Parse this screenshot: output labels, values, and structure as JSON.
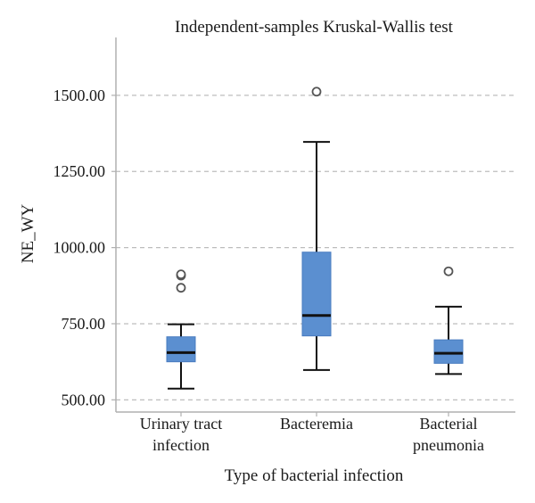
{
  "chart_data": {
    "type": "boxplot",
    "title": "Independent-samples Kruskal-Wallis test",
    "xlabel": "Type of bacterial infection",
    "ylabel": "NE_WY",
    "ylim": [
      460,
      1690
    ],
    "yticks": [
      500,
      750,
      1000,
      1250,
      1500
    ],
    "ytick_labels": [
      "500.00",
      "750.00",
      "1000.00",
      "1250.00",
      "1500.00"
    ],
    "grid": true,
    "box_color": "#5b8fd0",
    "categories": [
      {
        "label_lines": [
          "Urinary tract",
          "infection"
        ],
        "whisker_low": 537,
        "q1": 625,
        "median": 655,
        "q3": 707,
        "whisker_high": 748,
        "outliers": [
          868,
          908,
          912
        ]
      },
      {
        "label_lines": [
          "Bacteremia"
        ],
        "whisker_low": 598,
        "q1": 710,
        "median": 777,
        "q3": 985,
        "whisker_high": 1347,
        "outliers": [
          1512
        ]
      },
      {
        "label_lines": [
          "Bacterial",
          "pneumonia"
        ],
        "whisker_low": 585,
        "q1": 620,
        "median": 653,
        "q3": 697,
        "whisker_high": 806,
        "outliers": [
          922
        ]
      }
    ]
  }
}
